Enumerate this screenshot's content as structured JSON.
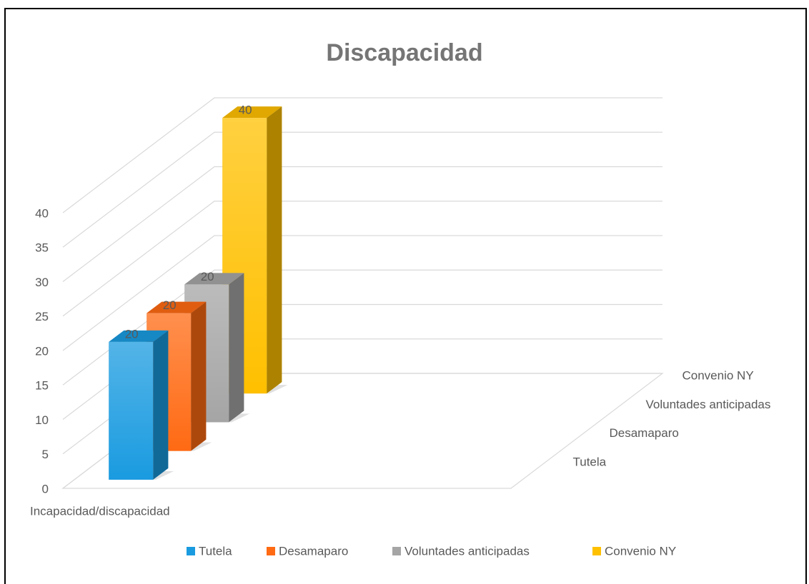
{
  "chart_data": {
    "type": "bar3d",
    "title": "Discapacidad",
    "categories": [
      "Incapacidad/discapacidad"
    ],
    "series": [
      {
        "name": "Tutela",
        "color": "#1a9be0",
        "values": [
          20
        ]
      },
      {
        "name": "Desamaparo",
        "color": "#ff6a13",
        "values": [
          20
        ]
      },
      {
        "name": "Voluntades anticipadas",
        "color": "#a5a5a5",
        "values": [
          20
        ]
      },
      {
        "name": "Convenio NY",
        "color": "#ffc000",
        "values": [
          40
        ]
      }
    ],
    "ylim": [
      0,
      40
    ],
    "yticks": [
      0,
      5,
      10,
      15,
      20,
      25,
      30,
      35,
      40
    ],
    "grid": true,
    "legend": "bottom"
  }
}
